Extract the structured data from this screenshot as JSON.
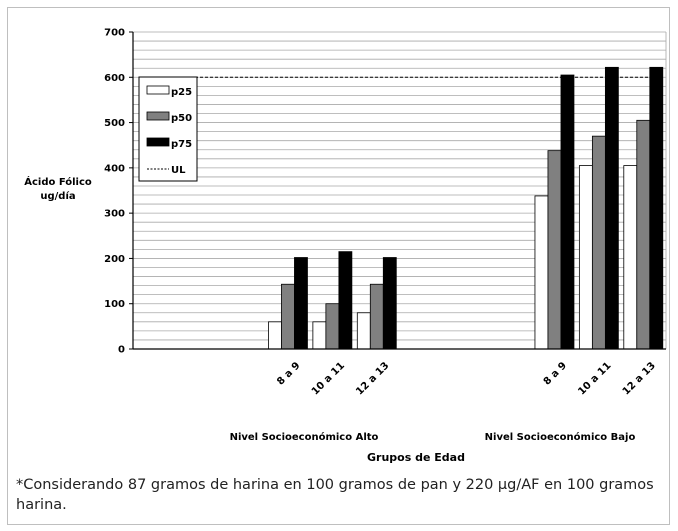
{
  "chart_data": {
    "type": "bar",
    "ylabel": [
      "Ácido Fólico",
      "ug/día"
    ],
    "xlabel": "Grupos de Edad",
    "ylim": [
      0,
      700
    ],
    "y_ticks": [
      0,
      100,
      200,
      300,
      400,
      500,
      600,
      700
    ],
    "grid": true,
    "legend_position": "top-left",
    "groups": [
      {
        "name": "Nivel Socioeconómico Alto",
        "categories": [
          "8 a 9",
          "10 a 11",
          "12 a 13"
        ]
      },
      {
        "name": "Nivel Socioeconómico Bajo",
        "categories": [
          "8 a 9",
          "10 a 11",
          "12 a 13"
        ]
      }
    ],
    "series": [
      {
        "name": "p25",
        "color": "#ffffff",
        "values": [
          60,
          60,
          80,
          338,
          405,
          405
        ]
      },
      {
        "name": "p50",
        "color": "#808080",
        "values": [
          143,
          100,
          143,
          438,
          470,
          505
        ]
      },
      {
        "name": "p75",
        "color": "#000000",
        "values": [
          202,
          215,
          202,
          605,
          622,
          622
        ]
      }
    ],
    "reference_line": {
      "name": "UL",
      "value": 600,
      "style": "dashed"
    }
  },
  "footnote": "*Considerando 87 gramos de harina en 100 gramos de pan y 220 µg/AF en 100 gramos harina."
}
